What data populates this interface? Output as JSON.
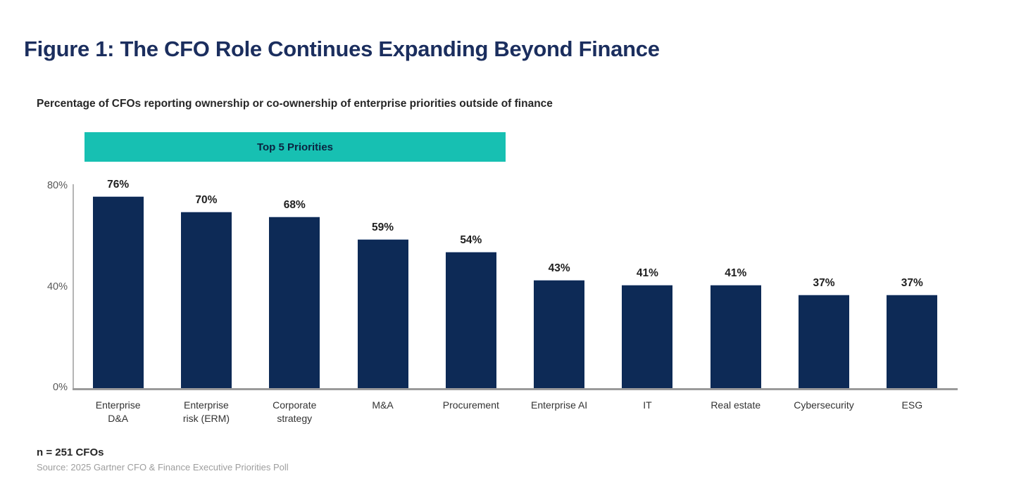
{
  "figure_title": "Figure 1: The CFO Role Continues Expanding Beyond Finance",
  "chart_data": {
    "type": "bar",
    "title": "Percentage of CFOs reporting ownership or co-ownership of enterprise priorities outside of finance",
    "banner_label": "Top 5 Priorities",
    "banner_covers": "first 5 bars",
    "categories": [
      "Enterprise D&A",
      "Enterprise risk (ERM)",
      "Corporate strategy",
      "M&A",
      "Procurement",
      "Enterprise AI",
      "IT",
      "Real estate",
      "Cybersecurity",
      "ESG"
    ],
    "categories_display": [
      "Enterprise\nD&A",
      "Enterprise\nrisk (ERM)",
      "Corporate\nstrategy",
      "M&A",
      "Procurement",
      "Enterprise AI",
      "IT",
      "Real estate",
      "Cybersecurity",
      "ESG"
    ],
    "values": [
      76,
      70,
      68,
      59,
      54,
      43,
      41,
      41,
      37,
      37
    ],
    "value_labels": [
      "76%",
      "70%",
      "68%",
      "59%",
      "54%",
      "43%",
      "41%",
      "41%",
      "37%",
      "37%"
    ],
    "xlabel": "",
    "ylabel": "",
    "ylim": [
      0,
      80
    ],
    "yticks": [
      {
        "value": 80,
        "label": "80%"
      },
      {
        "value": 40,
        "label": "40%"
      },
      {
        "value": 0,
        "label": "0%"
      }
    ],
    "grid": "off",
    "legend": "none"
  },
  "footer": {
    "sample": "n = 251 CFOs",
    "source": "Source: 2025 Gartner CFO & Finance Executive Priorities Poll"
  },
  "colors": {
    "bar": "#0d2a56",
    "banner_bg": "#17c0b2",
    "banner_text": "#0a2440",
    "figure_title": "#1b2e5e",
    "tick_label": "#595959",
    "value_label": "#1f1f1f",
    "category_label": "#333333",
    "subtitle": "#262626",
    "source": "#9e9e9e"
  }
}
